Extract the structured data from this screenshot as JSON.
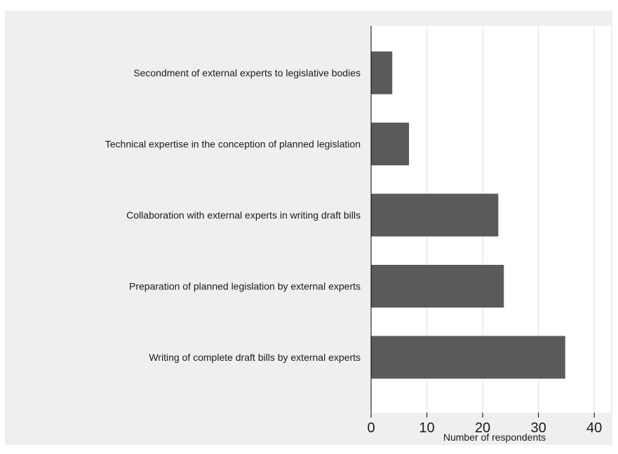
{
  "chart_data": {
    "type": "bar",
    "orientation": "horizontal",
    "categories": [
      "Secondment of external experts to legislative bodies",
      "Technical expertise in the conception of planned legislation",
      "Collaboration with external experts in writing draft bills",
      "Preparation of planned legislation by external experts",
      "Writing of complete draft bills by external experts"
    ],
    "values": [
      3.8,
      6.8,
      22.8,
      23.8,
      34.8
    ],
    "title": "",
    "xlabel": "Number of respondents",
    "ylabel": "",
    "xlim": [
      0,
      43
    ],
    "xticks": [
      0,
      10,
      20,
      30,
      40
    ],
    "grid": true,
    "colors": {
      "bar": "#5a5a5a",
      "background": "#efefef",
      "plot_area": "#ffffff",
      "grid": "#e8e8e8",
      "axis": "#000000"
    }
  }
}
